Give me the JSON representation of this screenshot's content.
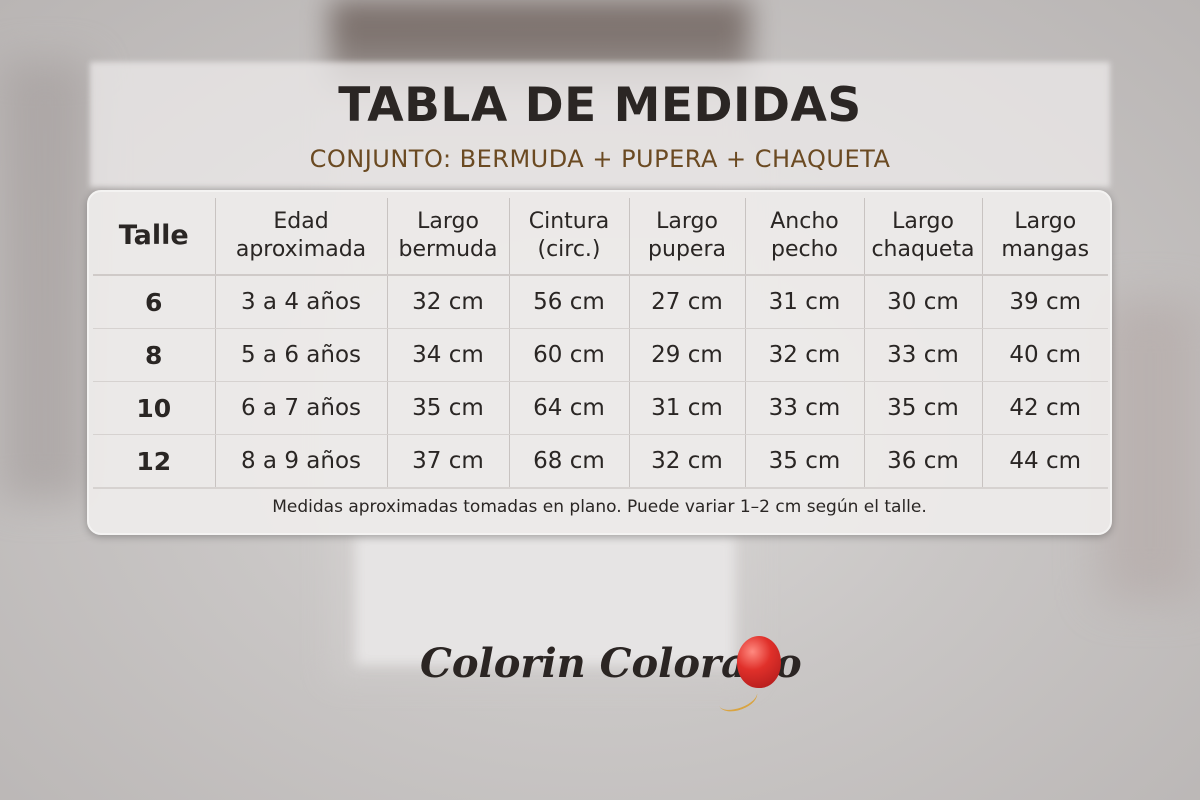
{
  "header": {
    "title": "TABLA DE MEDIDAS",
    "subtitle": "CONJUNTO: BERMUDA + PUPERA + CHAQUETA"
  },
  "table": {
    "columns": [
      {
        "line1": "Talle",
        "line2": ""
      },
      {
        "line1": "Edad",
        "line2": "aproximada"
      },
      {
        "line1": "Largo",
        "line2": "bermuda"
      },
      {
        "line1": "Cintura",
        "line2": "(circ.)"
      },
      {
        "line1": "Largo",
        "line2": "pupera"
      },
      {
        "line1": "Ancho",
        "line2": "pecho"
      },
      {
        "line1": "Largo",
        "line2": "chaqueta"
      },
      {
        "line1": "Largo",
        "line2": "mangas"
      }
    ],
    "rows": [
      [
        "6",
        "3 a 4 años",
        "32 cm",
        "56 cm",
        "27 cm",
        "31 cm",
        "30 cm",
        "39 cm"
      ],
      [
        "8",
        "5 a 6 años",
        "34 cm",
        "60 cm",
        "29 cm",
        "32 cm",
        "33 cm",
        "40 cm"
      ],
      [
        "10",
        "6 a 7 años",
        "35 cm",
        "64 cm",
        "31 cm",
        "33 cm",
        "35 cm",
        "42 cm"
      ],
      [
        "12",
        "8 a 9 años",
        "37 cm",
        "68 cm",
        "32 cm",
        "35 cm",
        "36 cm",
        "44 cm"
      ]
    ],
    "footnote": "Medidas aproximadas tomadas en plano. Puede variar 1–2 cm según el talle."
  },
  "brand": {
    "name": "Colorin Colorado",
    "icon": "balloon-icon",
    "balloon_color": "#e0302a"
  },
  "colors": {
    "title": "#2b2624",
    "subtitle": "#6b4a22"
  }
}
